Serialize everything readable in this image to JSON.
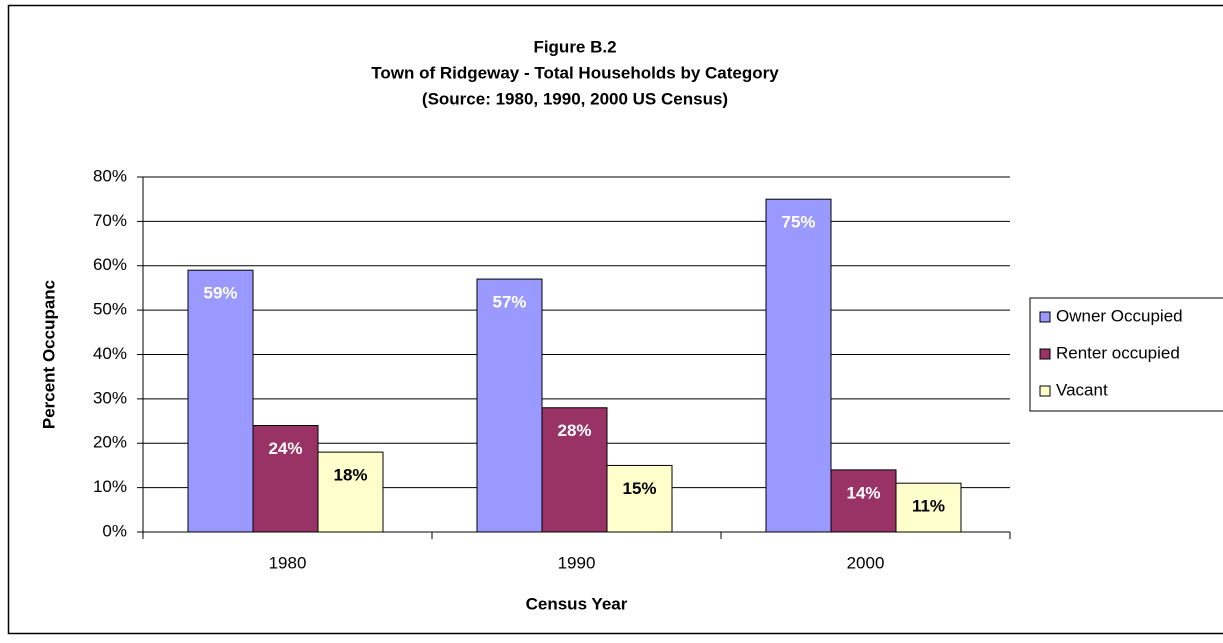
{
  "chart_data": {
    "type": "bar",
    "title": [
      "Figure B.2",
      "Town of Ridgeway - Total Households by Category",
      "(Source:  1980, 1990, 2000 US Census)"
    ],
    "x_label": "Census Year",
    "y_label": "Percent Occupanc",
    "categories": [
      "1980",
      "1990",
      "2000"
    ],
    "series": [
      {
        "name": "Owner Occupied",
        "color": "#9999ff",
        "label_color": "#ffffff",
        "values": [
          59,
          57,
          75
        ],
        "value_labels": [
          "59%",
          "57%",
          "75%"
        ]
      },
      {
        "name": "Renter occupied",
        "color": "#993366",
        "label_color": "#ffffff",
        "values": [
          24,
          28,
          14
        ],
        "value_labels": [
          "24%",
          "28%",
          "14%"
        ]
      },
      {
        "name": "Vacant",
        "color": "#ffffcc",
        "label_color": "#000000",
        "values": [
          18,
          15,
          11
        ],
        "value_labels": [
          "18%",
          "15%",
          "11%"
        ]
      }
    ],
    "ylim": [
      0,
      80
    ],
    "yticks": [
      {
        "value": 0,
        "label": "0%"
      },
      {
        "value": 10,
        "label": "10%"
      },
      {
        "value": 20,
        "label": "20%"
      },
      {
        "value": 30,
        "label": "30%"
      },
      {
        "value": 40,
        "label": "40%"
      },
      {
        "value": 50,
        "label": "50%"
      },
      {
        "value": 60,
        "label": "60%"
      },
      {
        "value": 70,
        "label": "70%"
      },
      {
        "value": 80,
        "label": "80%"
      }
    ],
    "grid": true,
    "legend": "right"
  }
}
